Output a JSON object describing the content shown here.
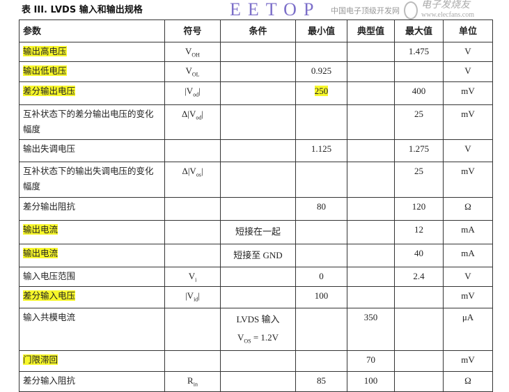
{
  "title": "表 III. LVDS 输入和输出规格",
  "headers": [
    "参数",
    "符号",
    "条件",
    "最小值",
    "典型值",
    "最大值",
    "单位"
  ],
  "rows": [
    {
      "param": "输出高电压",
      "hl": true,
      "sym": "V",
      "sub": "OH",
      "cond": "",
      "min": "",
      "typ": "",
      "max": "1.475",
      "unit": "V"
    },
    {
      "param": "输出低电压",
      "hl": true,
      "sym": "V",
      "sub": "OL",
      "cond": "",
      "min": "0.925",
      "typ": "",
      "max": "",
      "unit": "V"
    },
    {
      "param": "差分输出电压",
      "hl": true,
      "sym": "|V",
      "sub": "od",
      "sym_end": "|",
      "cond": "",
      "min": "250",
      "min_hl": true,
      "typ": "",
      "max": "400",
      "unit": "mV"
    },
    {
      "param": "互补状态下的差分输出电压的变化幅度",
      "sym": "Δ|V",
      "sub": "od",
      "sym_end": "|",
      "cond": "",
      "min": "",
      "typ": "",
      "max": "25",
      "unit": "mV"
    },
    {
      "param": "输出失调电压",
      "sym": "",
      "cond": "",
      "min": "1.125",
      "typ": "",
      "max": "1.275",
      "unit": "V"
    },
    {
      "param": "互补状态下的输出失调电压的变化幅度",
      "sym": "Δ|V",
      "sub": "os",
      "sym_end": "|",
      "cond": "",
      "min": "",
      "typ": "",
      "max": "25",
      "unit": "mV"
    },
    {
      "param": "差分输出阻抗",
      "sym": "",
      "cond": "",
      "min": "80",
      "typ": "",
      "max": "120",
      "unit": "Ω"
    },
    {
      "param": "输出电流",
      "hl": true,
      "sym": "",
      "cond": "短接在一起",
      "min": "",
      "typ": "",
      "max": "12",
      "unit": "mA"
    },
    {
      "param": "输出电流",
      "hl": true,
      "sym": "",
      "cond": "短接至 GND",
      "min": "",
      "typ": "",
      "max": "40",
      "unit": "mA"
    },
    {
      "param": "输入电压范围",
      "sym": "V",
      "sub": "i",
      "cond": "",
      "min": "0",
      "typ": "",
      "max": "2.4",
      "unit": "V"
    },
    {
      "param": "差分输入电压",
      "hl": true,
      "sym": "|V",
      "sub": "id",
      "sym_end": "|",
      "cond": "",
      "min": "100",
      "typ": "",
      "max": "",
      "unit": "mV"
    },
    {
      "param": "输入共模电流",
      "sym": "",
      "cond": "LVDS 输入",
      "cond2": "V",
      "cond2_sub": "OS",
      "cond2_end": " = 1.2V",
      "min": "",
      "typ": "350",
      "max": "",
      "unit": "μA"
    },
    {
      "param": "门限滞回",
      "hl": true,
      "sym": "",
      "cond": "",
      "min": "",
      "typ": "70",
      "max": "",
      "unit": "mV"
    },
    {
      "param": "差分输入阻抗",
      "sym": "R",
      "sub": "in",
      "cond": "",
      "min": "85",
      "typ": "100",
      "max": "",
      "unit": "Ω"
    }
  ],
  "watermarks": {
    "left_logo": "EETOP",
    "left_caption": "中国电子顶级开发网",
    "right_logo": "电子发烧友",
    "right_caption": "www.elecfans.com"
  }
}
